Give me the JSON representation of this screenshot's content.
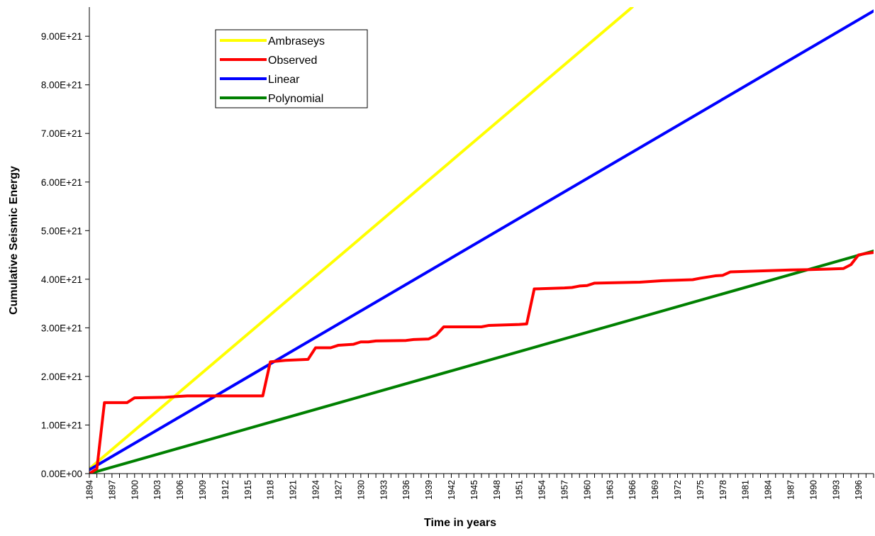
{
  "chart_data": {
    "type": "line",
    "title": "",
    "xlabel": "Time in years",
    "ylabel": "Cumulative Seismic Energy",
    "xlim": [
      1894,
      1998
    ],
    "ylim": [
      0,
      9.6e+21
    ],
    "grid": false,
    "legend_position": "top-left",
    "y_ticks": [
      0,
      1e+21,
      2e+21,
      3e+21,
      4e+21,
      5e+21,
      6e+21,
      7e+21,
      8e+21,
      9e+21
    ],
    "y_tick_labels": [
      "0.00E+00",
      "1.00E+21",
      "2.00E+21",
      "3.00E+21",
      "4.00E+21",
      "5.00E+21",
      "6.00E+21",
      "7.00E+21",
      "8.00E+21",
      "9.00E+21"
    ],
    "x_tick_labels": [
      "1894",
      "1897",
      "1900",
      "1903",
      "1906",
      "1909",
      "1912",
      "1915",
      "1918",
      "1921",
      "1924",
      "1927",
      "1930",
      "1933",
      "1936",
      "1939",
      "1942",
      "1945",
      "1948",
      "1951",
      "1954",
      "1957",
      "1960",
      "1963",
      "1966",
      "1969",
      "1972",
      "1975",
      "1978",
      "1981",
      "1984",
      "1987",
      "1990",
      "1993",
      "1996"
    ],
    "series": [
      {
        "name": "Ambraseys",
        "color": "#ffff00",
        "x": [
          1894,
          1966
        ],
        "y": [
          1e+20,
          9.6e+21
        ]
      },
      {
        "name": "Observed",
        "color": "#ff0000",
        "x": [
          1894,
          1895,
          1896,
          1899,
          1900,
          1904,
          1907,
          1917,
          1918,
          1920,
          1923,
          1924,
          1926,
          1927,
          1929,
          1930,
          1931,
          1932,
          1936,
          1937,
          1939,
          1940,
          1941,
          1945,
          1946,
          1947,
          1951,
          1952,
          1953,
          1957,
          1958,
          1959,
          1960,
          1961,
          1967,
          1970,
          1974,
          1975,
          1977,
          1978,
          1979,
          1987,
          1990,
          1992,
          1994,
          1995,
          1996,
          1997,
          1998
        ],
        "y": [
          0,
          1e+20,
          1.46e+21,
          1.46e+21,
          1.56e+21,
          1.57e+21,
          1.6e+21,
          1.6e+21,
          2.3e+21,
          2.33e+21,
          2.35e+21,
          2.59e+21,
          2.59e+21,
          2.64e+21,
          2.66e+21,
          2.71e+21,
          2.71e+21,
          2.73e+21,
          2.74e+21,
          2.76e+21,
          2.77e+21,
          2.85e+21,
          3.02e+21,
          3.02e+21,
          3.02e+21,
          3.05e+21,
          3.07e+21,
          3.08e+21,
          3.8e+21,
          3.82e+21,
          3.83e+21,
          3.86e+21,
          3.87e+21,
          3.92e+21,
          3.94e+21,
          3.97e+21,
          3.99e+21,
          4.02e+21,
          4.07e+21,
          4.08e+21,
          4.15e+21,
          4.19e+21,
          4.2e+21,
          4.21e+21,
          4.22e+21,
          4.3e+21,
          4.5e+21,
          4.53e+21,
          4.55e+21
        ]
      },
      {
        "name": "Linear",
        "color": "#0000ff",
        "x": [
          1894,
          1998
        ],
        "y": [
          8e+19,
          9.52e+21
        ]
      },
      {
        "name": "Polynomial",
        "color": "#008000",
        "x": [
          1894,
          1998
        ],
        "y": [
          0,
          4.58e+21
        ]
      }
    ]
  }
}
